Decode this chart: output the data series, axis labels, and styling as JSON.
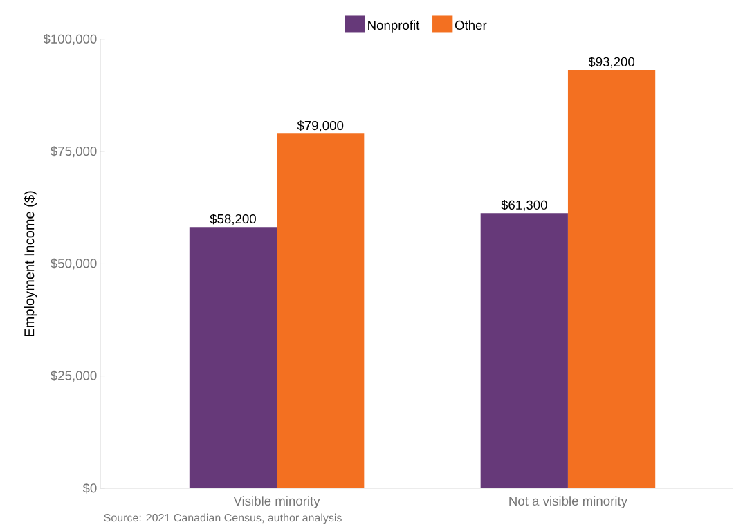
{
  "chart_data": {
    "type": "bar",
    "ylabel": "Employment Income ($)",
    "categories": [
      "Visible minority",
      "Not a visible minority"
    ],
    "series": [
      {
        "name": "Nonprofit",
        "color": "#663979",
        "values": [
          58200,
          61300
        ],
        "value_labels": [
          "$58,200",
          "$61,300"
        ]
      },
      {
        "name": "Other",
        "color": "#f37021",
        "values": [
          79000,
          93200
        ],
        "value_labels": [
          "$79,000",
          "$93,200"
        ]
      }
    ],
    "ylim": [
      0,
      100000
    ],
    "yticks": [
      {
        "value": 0,
        "label": "$0"
      },
      {
        "value": 25000,
        "label": "$25,000"
      },
      {
        "value": 50000,
        "label": "$50,000"
      },
      {
        "value": 75000,
        "label": "$75,000"
      },
      {
        "value": 100000,
        "label": "$100,000"
      }
    ],
    "grid": false,
    "legend": "top",
    "annotations": [
      "Source: 2021 Canadian Census, author analysis"
    ]
  }
}
